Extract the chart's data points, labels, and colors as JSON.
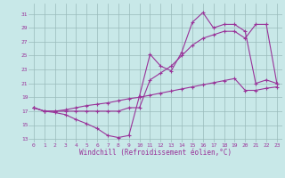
{
  "bg_color": "#c8e8e8",
  "line_color": "#993399",
  "grid_color": "#99bbbb",
  "xlabel": "Windchill (Refroidissement éolien,°C)",
  "xlim": [
    -0.5,
    23.5
  ],
  "ylim": [
    12.5,
    32.5
  ],
  "yticks": [
    13,
    15,
    17,
    19,
    21,
    23,
    25,
    27,
    29,
    31
  ],
  "xticks": [
    0,
    1,
    2,
    3,
    4,
    5,
    6,
    7,
    8,
    9,
    10,
    11,
    12,
    13,
    14,
    15,
    16,
    17,
    18,
    19,
    20,
    21,
    22,
    23
  ],
  "line1_x": [
    0,
    1,
    2,
    3,
    4,
    5,
    6,
    7,
    8,
    9,
    10,
    11,
    12,
    13,
    14,
    15,
    16,
    17,
    18,
    19,
    20,
    21,
    22,
    23
  ],
  "line1_y": [
    17.5,
    17.0,
    16.8,
    16.5,
    15.8,
    15.2,
    14.5,
    13.5,
    13.2,
    13.5,
    19.2,
    25.2,
    23.5,
    22.8,
    25.5,
    29.8,
    31.2,
    29.0,
    29.5,
    29.5,
    28.5,
    21.0,
    21.5,
    21.0
  ],
  "line2_x": [
    0,
    1,
    2,
    3,
    4,
    5,
    6,
    7,
    8,
    9,
    10,
    11,
    12,
    13,
    14,
    15,
    16,
    17,
    18,
    19,
    20,
    21,
    22,
    23
  ],
  "line2_y": [
    17.5,
    17.0,
    17.0,
    17.0,
    17.0,
    17.0,
    17.0,
    17.0,
    17.0,
    17.5,
    17.5,
    21.5,
    22.5,
    23.5,
    25.0,
    26.5,
    27.5,
    28.0,
    28.5,
    28.5,
    27.5,
    29.5,
    29.5,
    21.0
  ],
  "line3_x": [
    0,
    1,
    2,
    3,
    4,
    5,
    6,
    7,
    8,
    9,
    10,
    11,
    12,
    13,
    14,
    15,
    16,
    17,
    18,
    19,
    20,
    21,
    22,
    23
  ],
  "line3_y": [
    17.5,
    17.0,
    17.0,
    17.2,
    17.5,
    17.8,
    18.0,
    18.2,
    18.5,
    18.8,
    19.0,
    19.3,
    19.6,
    19.9,
    20.2,
    20.5,
    20.8,
    21.1,
    21.4,
    21.7,
    20.0,
    20.0,
    20.3,
    20.5
  ]
}
